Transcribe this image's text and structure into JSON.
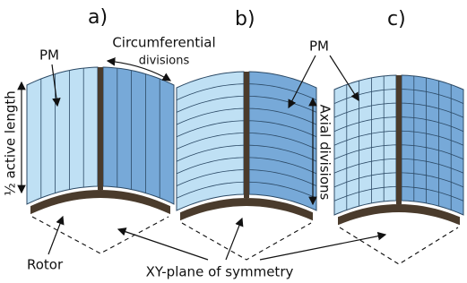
{
  "panels": [
    {
      "label": "a)"
    },
    {
      "label": "b)"
    },
    {
      "label": "c)"
    }
  ],
  "annotations": {
    "pm_a": "PM",
    "circumferential": [
      "Circumferential",
      "divisions"
    ],
    "active_length": "½ active length",
    "pm_bc": "PM",
    "axial": "Axial divisions",
    "rotor": "Rotor",
    "plane": "XY-plane of symmetry"
  }
}
